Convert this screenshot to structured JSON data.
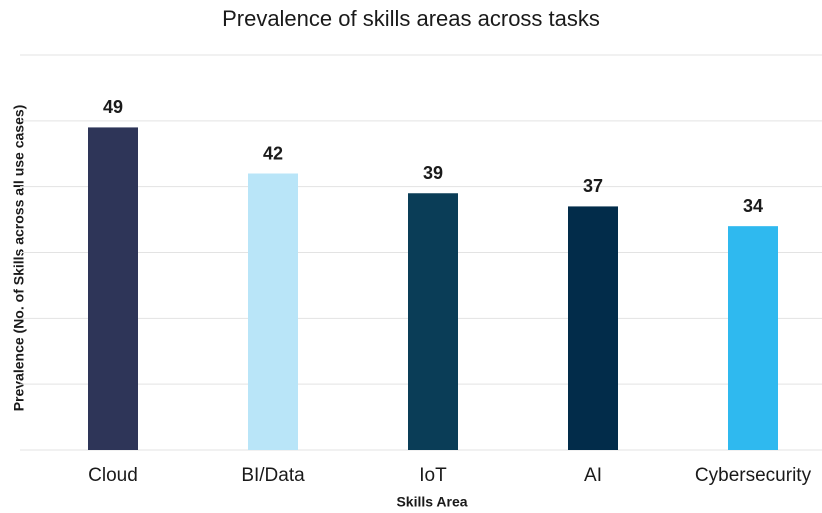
{
  "chart_data": {
    "type": "bar",
    "title": "Prevalence of skills areas across tasks",
    "x_label": "Skills Area",
    "y_label": "Prevalence (No. of Skills across all use cases)",
    "categories": [
      "Cloud",
      "BI/Data",
      "IoT",
      "AI",
      "Cybersecurity"
    ],
    "values": [
      49,
      42,
      39,
      37,
      34
    ],
    "colors": [
      "#2e3558",
      "#b9e5f8",
      "#0a3d57",
      "#022c4a",
      "#2fb9ef"
    ],
    "ylim": [
      0,
      60
    ],
    "yticks": [
      0,
      10,
      20,
      30,
      40,
      50,
      60
    ],
    "grid": true
  }
}
